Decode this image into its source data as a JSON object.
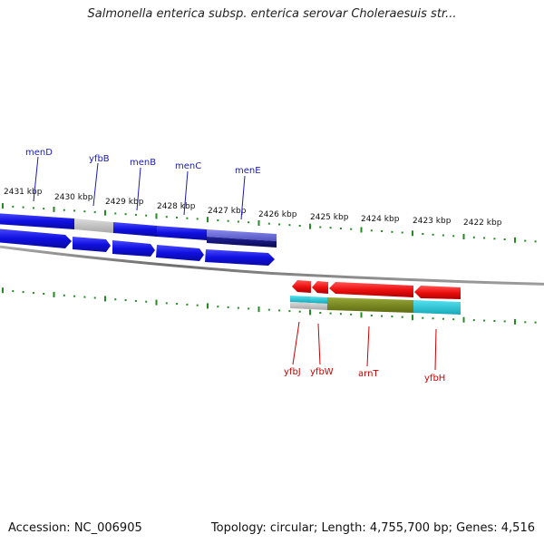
{
  "title": "Salmonella enterica subsp. enterica serovar Choleraesuis str...",
  "footer": {
    "accession": "Accession: NC_006905",
    "stats": "Topology: circular; Length: 4,755,700 bp; Genes: 4,516"
  },
  "ticks": [
    "2431 kbp",
    "2430 kbp",
    "2429 kbp",
    "2428 kbp",
    "2427 kbp",
    "2426 kbp",
    "2425 kbp",
    "2424 kbp",
    "2423 kbp",
    "2422 kbp"
  ],
  "genes_forward": [
    "menD",
    "yfbB",
    "menB",
    "menC",
    "menE"
  ],
  "genes_reverse": [
    "yfbJ",
    "yfbW",
    "arnT",
    "yfbH"
  ],
  "colors": {
    "forward_gene": "#1010e0",
    "reverse_gene": "#ee1111",
    "backbone": "#808080",
    "tick": "#228b22",
    "cog_gray": "#c0c0c0",
    "cog_purple": "#6a6ad8",
    "cog_navy": "#10106a",
    "cog_cyan": "#22ccdd",
    "cog_olive": "#7a8a22"
  }
}
